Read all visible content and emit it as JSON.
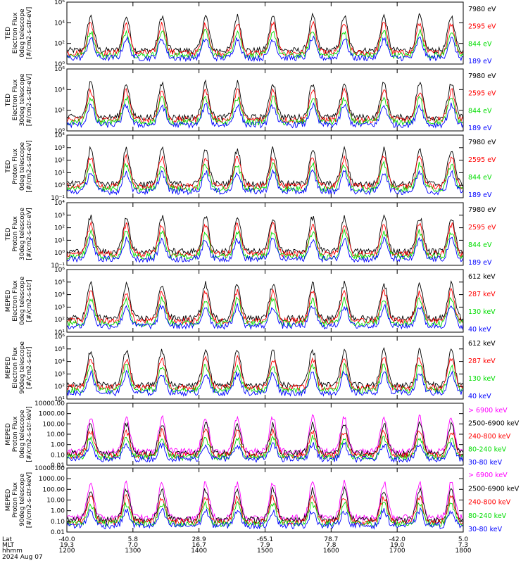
{
  "chart_data": {
    "type": "line",
    "x_start": "1200",
    "x_end": "1800",
    "panels": [
      {
        "ylabel": [
          "TED",
          "Electron Flux",
          "0deg telescope",
          "[#/cm2-s-str-eV]"
        ],
        "yscale": "log",
        "ylim": [
          1,
          1000000
        ],
        "ticks": [
          {
            "v": 1,
            "label": "10⁰"
          },
          {
            "v": 100,
            "label": "10²"
          },
          {
            "v": 10000,
            "label": "10⁴"
          },
          {
            "v": 1000000,
            "label": "10⁶"
          }
        ],
        "series": [
          {
            "name": "7980 eV",
            "color": "#000000"
          },
          {
            "name": "2595 eV",
            "color": "#ff0000"
          },
          {
            "name": "844 eV",
            "color": "#00dd00"
          },
          {
            "name": "189 eV",
            "color": "#0000ff"
          }
        ]
      },
      {
        "ylabel": [
          "TED",
          "Electron Flux",
          "30deg telescope",
          "[#/cm2-s-str-eV]"
        ],
        "yscale": "log",
        "ylim": [
          1,
          1000000
        ],
        "ticks": [
          {
            "v": 1,
            "label": "10⁰"
          },
          {
            "v": 100,
            "label": "10²"
          },
          {
            "v": 10000,
            "label": "10⁴"
          },
          {
            "v": 1000000,
            "label": "10⁶"
          }
        ],
        "series": [
          {
            "name": "7980 eV",
            "color": "#000000"
          },
          {
            "name": "2595 eV",
            "color": "#ff0000"
          },
          {
            "name": "844 eV",
            "color": "#00dd00"
          },
          {
            "name": "189 eV",
            "color": "#0000ff"
          }
        ]
      },
      {
        "ylabel": [
          "TED",
          "Proton Flux",
          "0deg telescope",
          "[#/cm2-s-str-eV]"
        ],
        "yscale": "log",
        "ylim": [
          0.1,
          10000
        ],
        "ticks": [
          {
            "v": 0.1,
            "label": "10⁻¹"
          },
          {
            "v": 1,
            "label": "10⁰"
          },
          {
            "v": 10,
            "label": "10¹"
          },
          {
            "v": 100,
            "label": "10²"
          },
          {
            "v": 1000,
            "label": "10³"
          },
          {
            "v": 10000,
            "label": "10⁴"
          }
        ],
        "series": [
          {
            "name": "7980 eV",
            "color": "#000000"
          },
          {
            "name": "2595 eV",
            "color": "#ff0000"
          },
          {
            "name": "844 eV",
            "color": "#00dd00"
          },
          {
            "name": "189 eV",
            "color": "#0000ff"
          }
        ]
      },
      {
        "ylabel": [
          "TED",
          "Proton Flux",
          "30deg telescope",
          "[#/cm2-s-str-eV]"
        ],
        "yscale": "log",
        "ylim": [
          0.1,
          10000
        ],
        "ticks": [
          {
            "v": 0.1,
            "label": "10⁻¹"
          },
          {
            "v": 1,
            "label": "10⁰"
          },
          {
            "v": 10,
            "label": "10¹"
          },
          {
            "v": 100,
            "label": "10²"
          },
          {
            "v": 1000,
            "label": "10³"
          },
          {
            "v": 10000,
            "label": "10⁴"
          }
        ],
        "series": [
          {
            "name": "7980 eV",
            "color": "#000000"
          },
          {
            "name": "2595 eV",
            "color": "#ff0000"
          },
          {
            "name": "844 eV",
            "color": "#00dd00"
          },
          {
            "name": "189 eV",
            "color": "#0000ff"
          }
        ]
      },
      {
        "ylabel": [
          "MEPED",
          "Electron Flux",
          "0deg telescope",
          "[#/cm2-s-str]"
        ],
        "yscale": "log",
        "ylim": [
          10,
          1000000
        ],
        "ticks": [
          {
            "v": 10,
            "label": "10¹"
          },
          {
            "v": 100,
            "label": "10²"
          },
          {
            "v": 1000,
            "label": "10³"
          },
          {
            "v": 10000,
            "label": "10⁴"
          },
          {
            "v": 100000,
            "label": "10⁵"
          },
          {
            "v": 1000000,
            "label": "10⁶"
          }
        ],
        "series": [
          {
            "name": "612 keV",
            "color": "#000000"
          },
          {
            "name": "287 keV",
            "color": "#ff0000"
          },
          {
            "name": "130 keV",
            "color": "#00dd00"
          },
          {
            "name": "40 keV",
            "color": "#0000ff"
          }
        ]
      },
      {
        "ylabel": [
          "MEPED",
          "Electron Flux",
          "90deg telescope",
          "[#/cm2-s-str]"
        ],
        "yscale": "log",
        "ylim": [
          10,
          1000000
        ],
        "ticks": [
          {
            "v": 10,
            "label": "10¹"
          },
          {
            "v": 100,
            "label": "10²"
          },
          {
            "v": 1000,
            "label": "10³"
          },
          {
            "v": 10000,
            "label": "10⁴"
          },
          {
            "v": 100000,
            "label": "10⁵"
          },
          {
            "v": 1000000,
            "label": "10⁶"
          }
        ],
        "series": [
          {
            "name": "612 keV",
            "color": "#000000"
          },
          {
            "name": "287 keV",
            "color": "#ff0000"
          },
          {
            "name": "130 keV",
            "color": "#00dd00"
          },
          {
            "name": "40 keV",
            "color": "#0000ff"
          }
        ]
      },
      {
        "ylabel": [
          "MEPED",
          "Proton Flux",
          "0deg telescope",
          "[#/cm2-s-str-keV]"
        ],
        "yscale": "log",
        "ylim": [
          0.01,
          10000
        ],
        "ticks": [
          {
            "v": 0.01,
            "label": "0.01"
          },
          {
            "v": 0.1,
            "label": "0.10"
          },
          {
            "v": 1,
            "label": "1.00"
          },
          {
            "v": 10,
            "label": "10.00"
          },
          {
            "v": 100,
            "label": "100.00"
          },
          {
            "v": 1000,
            "label": "1000.00"
          },
          {
            "v": 10000,
            "label": "10000.00"
          }
        ],
        "series": [
          {
            "name": "> 6900 keV",
            "color": "#ff00ff"
          },
          {
            "name": "2500-6900 keV",
            "color": "#000000"
          },
          {
            "name": "240-800 keV",
            "color": "#ff0000"
          },
          {
            "name": "80-240 keV",
            "color": "#00dd00"
          },
          {
            "name": "30-80 keV",
            "color": "#0000ff"
          }
        ]
      },
      {
        "ylabel": [
          "MEPED",
          "Proton Flux",
          "90deg telescope",
          "[#/cm2-s-str-keV]"
        ],
        "yscale": "log",
        "ylim": [
          0.01,
          10000
        ],
        "ticks": [
          {
            "v": 0.01,
            "label": "0.01"
          },
          {
            "v": 0.1,
            "label": "0.10"
          },
          {
            "v": 1,
            "label": "1.00"
          },
          {
            "v": 10,
            "label": "10.00"
          },
          {
            "v": 100,
            "label": "100.00"
          },
          {
            "v": 1000,
            "label": "1000.00"
          },
          {
            "v": 10000,
            "label": "10000.00"
          }
        ],
        "series": [
          {
            "name": "> 6900 keV",
            "color": "#ff00ff"
          },
          {
            "name": "2500-6900 keV",
            "color": "#000000"
          },
          {
            "name": "240-800 keV",
            "color": "#ff0000"
          },
          {
            "name": "80-240 keV",
            "color": "#00dd00"
          },
          {
            "name": "30-80 keV",
            "color": "#0000ff"
          }
        ]
      }
    ],
    "x_axis": {
      "row_labels": [
        "Lat",
        "MLT",
        "hhmm",
        "2024 Aug 07"
      ],
      "ticks": [
        {
          "lat": "-40.0",
          "mlt": "19.3",
          "hhmm": "1200"
        },
        {
          "lat": "5.8",
          "mlt": "7.0",
          "hhmm": "1300"
        },
        {
          "lat": "28.9",
          "mlt": "16.7",
          "hhmm": "1400"
        },
        {
          "lat": "-65.1",
          "mlt": "7.9",
          "hhmm": "1500"
        },
        {
          "lat": "78.7",
          "mlt": "7.8",
          "hhmm": "1600"
        },
        {
          "lat": "-42.0",
          "mlt": "19.0",
          "hhmm": "1700"
        },
        {
          "lat": "5.0",
          "mlt": "7.3",
          "hhmm": "1800"
        }
      ]
    }
  }
}
